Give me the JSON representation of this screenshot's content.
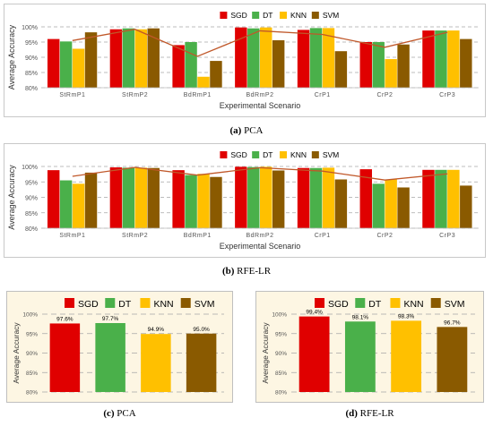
{
  "colors": {
    "SGD": "#e00000",
    "DT": "#4ab04a",
    "KNN": "#ffc000",
    "SVM": "#8a5a00",
    "trend": "#c0582a",
    "grid": "#a6a6a6",
    "frame": "#c8c8c8",
    "bottomBg": "#fdf6e3"
  },
  "chart_data": [
    {
      "type": "bar",
      "id": "a",
      "caption_letter": "(a)",
      "caption_text": "PCA",
      "xlabel": "Experimental Scenario",
      "ylabel": "Average Accuracy",
      "ylim": [
        80,
        100
      ],
      "yticks": [
        "80%",
        "85%",
        "90%",
        "95%",
        "100%"
      ],
      "legend": [
        "SGD",
        "DT",
        "KNN",
        "SVM"
      ],
      "legend_position": "top-center",
      "categories": [
        "StRmP1",
        "StRmP2",
        "BdRmP1",
        "BdRmP2",
        "CrP1",
        "CrP2",
        "CrP3"
      ],
      "series": [
        {
          "name": "SGD",
          "values": [
            96.0,
            99.2,
            94.0,
            99.8,
            99.0,
            95.0,
            98.8
          ]
        },
        {
          "name": "DT",
          "values": [
            95.2,
            99.5,
            95.0,
            99.5,
            99.6,
            95.0,
            98.8
          ]
        },
        {
          "name": "KNN",
          "values": [
            92.8,
            99.2,
            83.6,
            99.8,
            99.6,
            89.4,
            98.8
          ]
        },
        {
          "name": "SVM",
          "values": [
            98.2,
            99.5,
            88.8,
            95.6,
            92.0,
            94.2,
            96.0
          ]
        }
      ],
      "trendline": [
        95.5,
        99.2,
        90.3,
        98.7,
        97.5,
        93.3,
        98.2
      ]
    },
    {
      "type": "bar",
      "id": "b",
      "caption_letter": "(b)",
      "caption_text": "RFE-LR",
      "xlabel": "Experimental Scenario",
      "ylabel": "Average Accuracy",
      "ylim": [
        80,
        100
      ],
      "yticks": [
        "80%",
        "85%",
        "90%",
        "95%",
        "100%"
      ],
      "legend": [
        "SGD",
        "DT",
        "KNN",
        "SVM"
      ],
      "legend_position": "top-center",
      "categories": [
        "StRmP1",
        "StRmP2",
        "BdRmP1",
        "BdRmP2",
        "CrP1",
        "CrP2",
        "CrP3"
      ],
      "series": [
        {
          "name": "SGD",
          "values": [
            98.8,
            99.7,
            98.8,
            99.9,
            99.5,
            99.1,
            98.9
          ]
        },
        {
          "name": "DT",
          "values": [
            95.5,
            99.6,
            97.2,
            99.8,
            99.5,
            94.4,
            98.9
          ]
        },
        {
          "name": "KNN",
          "values": [
            94.4,
            99.6,
            97.6,
            99.9,
            99.6,
            95.8,
            98.9
          ]
        },
        {
          "name": "SVM",
          "values": [
            98.0,
            99.5,
            96.6,
            98.7,
            95.8,
            93.2,
            93.8
          ]
        }
      ],
      "trendline": [
        96.8,
        99.7,
        97.2,
        99.6,
        98.5,
        95.6,
        97.6
      ]
    },
    {
      "type": "bar",
      "id": "c",
      "caption_letter": "(c)",
      "caption_text": "PCA",
      "ylabel": "Average Accuracy",
      "ylim": [
        80,
        100
      ],
      "yticks": [
        "80%",
        "85%",
        "90%",
        "95%",
        "100%"
      ],
      "legend": [
        "SGD",
        "DT",
        "KNN",
        "SVM"
      ],
      "legend_position": "top-center",
      "categories": [
        "SGD",
        "DT",
        "KNN",
        "SVM"
      ],
      "values": [
        97.6,
        97.7,
        94.9,
        95.0
      ],
      "labels": [
        "97.6%",
        "97.7%",
        "94.9%",
        "95.0%"
      ]
    },
    {
      "type": "bar",
      "id": "d",
      "caption_letter": "(d)",
      "caption_text": "RFE-LR",
      "ylabel": "Average Accuracy",
      "ylim": [
        80,
        100
      ],
      "yticks": [
        "80%",
        "85%",
        "90%",
        "95%",
        "100%"
      ],
      "legend": [
        "SGD",
        "DT",
        "KNN",
        "SVM"
      ],
      "legend_position": "top-center",
      "categories": [
        "SGD",
        "DT",
        "KNN",
        "SVM"
      ],
      "values": [
        99.4,
        98.1,
        98.3,
        96.7
      ],
      "labels": [
        "99.4%",
        "98.1%",
        "98.3%",
        "96.7%"
      ]
    }
  ]
}
